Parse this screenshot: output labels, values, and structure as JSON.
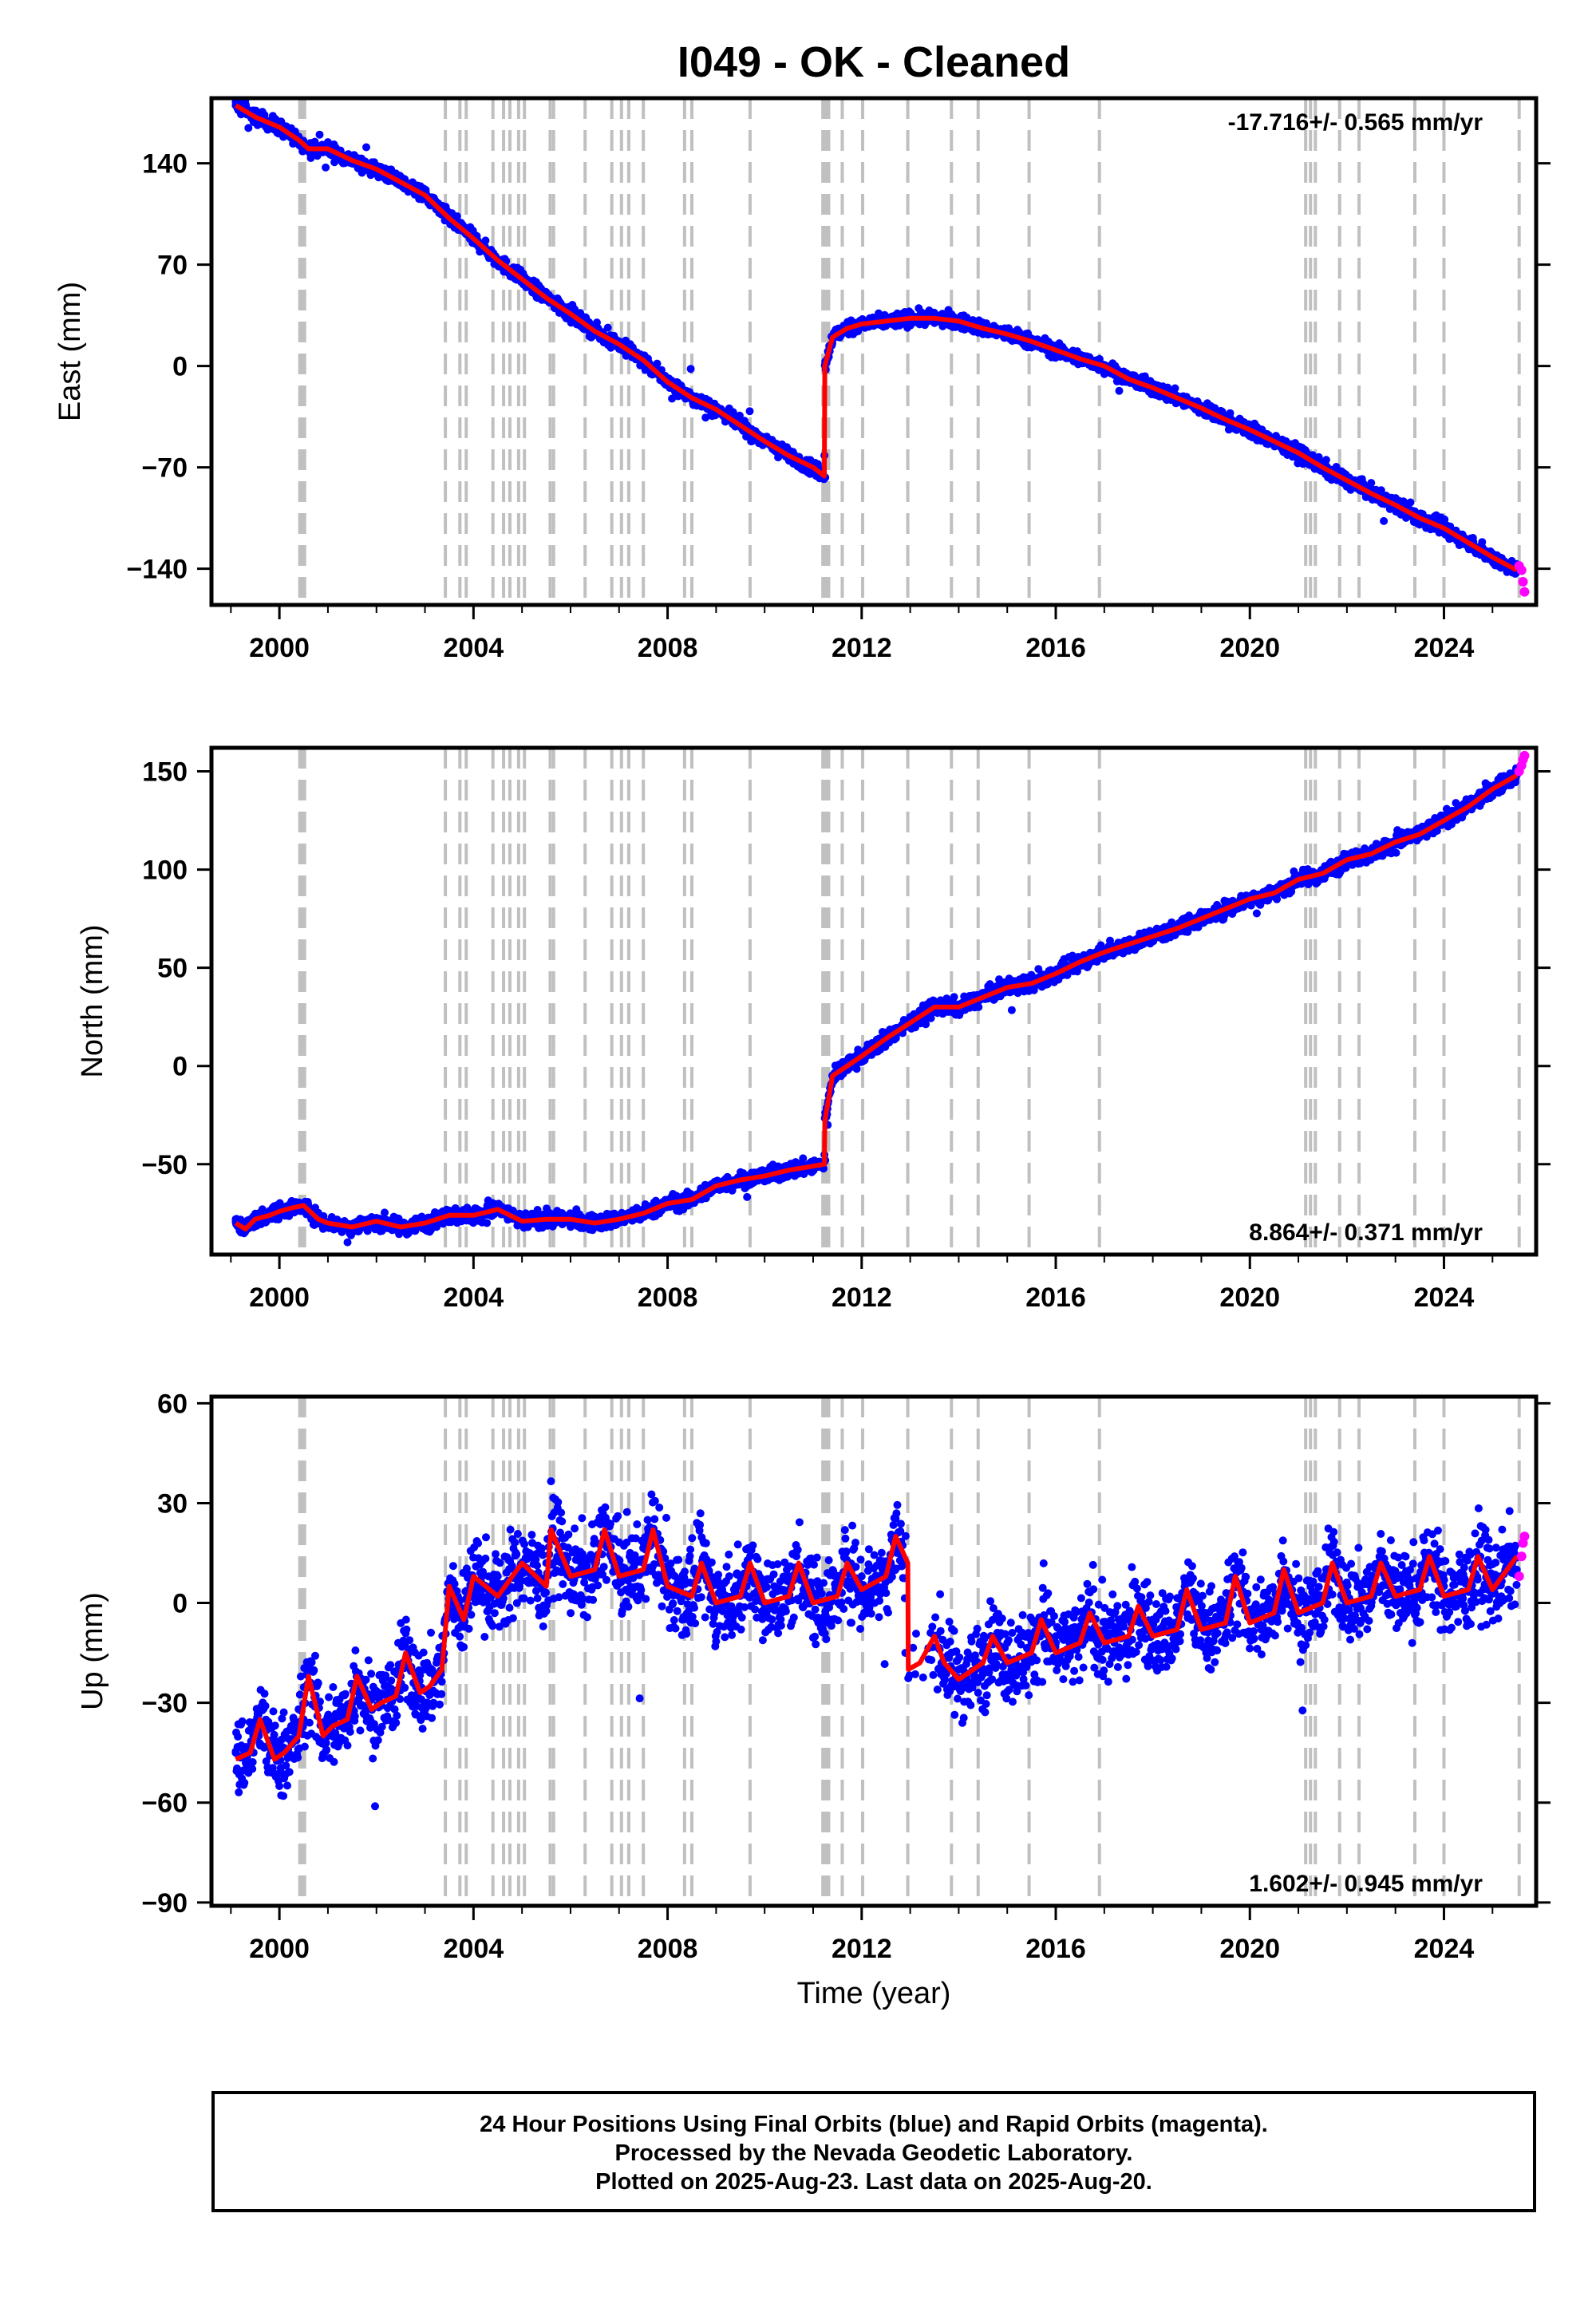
{
  "title": "I049  - OK - Cleaned",
  "xlabel": "Time (year)",
  "caption": [
    "24 Hour Positions Using Final Orbits (blue) and Rapid Orbits (magenta).",
    "Processed by the Nevada Geodetic Laboratory.",
    "Plotted on 2025-Aug-23. Last data on 2025-Aug-20."
  ],
  "colors": {
    "final_orbits": "#0000ff",
    "rapid_orbits": "#ff00ff",
    "model": "#ff0000",
    "event_lines": "#c0c0c0",
    "frame": "#000000"
  },
  "chart_data": [
    {
      "type": "scatter",
      "component": "East",
      "ylabel": "East (mm)",
      "rate_text": "-17.716+/- 0.565 mm/yr",
      "rate_position": "top-right",
      "xlim": [
        1998.6,
        2025.9
      ],
      "ylim": [
        -165,
        185
      ],
      "xticks": [
        "2000",
        "2004",
        "2008",
        "2012",
        "2016",
        "2020",
        "2024"
      ],
      "yticks": [
        "140",
        "70",
        "0",
        "−70",
        "−140"
      ],
      "ytick_values": [
        140,
        70,
        0,
        -70,
        -140
      ],
      "grid": false,
      "series": [
        {
          "name": "Final Orbits",
          "style": "points",
          "x": [
            1999.1,
            1999.5,
            2000.0,
            2000.5,
            2001.0,
            2001.5,
            2002.0,
            2002.5,
            2003.0,
            2003.5,
            2004.0,
            2004.5,
            2005.0,
            2005.5,
            2006.0,
            2006.5,
            2007.0,
            2007.5,
            2008.0,
            2008.5,
            2009.0,
            2009.5,
            2010.0,
            2010.5,
            2011.0,
            2011.25,
            2011.3,
            2011.5,
            2012.0,
            2012.5,
            2013.0,
            2013.5,
            2014.0,
            2014.5,
            2015.0,
            2015.5,
            2016.0,
            2016.5,
            2017.0,
            2017.5,
            2018.0,
            2018.5,
            2019.0,
            2019.5,
            2020.0,
            2020.5,
            2021.0,
            2021.5,
            2022.0,
            2022.5,
            2023.0,
            2023.5,
            2024.0,
            2024.5,
            2025.0,
            2025.5
          ],
          "y": [
            180,
            172,
            166,
            153,
            152,
            143,
            137,
            128,
            118,
            101,
            88,
            72,
            60,
            46,
            35,
            23,
            14,
            3,
            -12,
            -23,
            -30,
            -41,
            -52,
            -62,
            -70,
            -77,
            5,
            22,
            27,
            30,
            33,
            32,
            31,
            27,
            23,
            17,
            12,
            5,
            0,
            -9,
            -15,
            -22,
            -29,
            -37,
            -44,
            -52,
            -61,
            -71,
            -79,
            -88,
            -96,
            -105,
            -112,
            -122,
            -132,
            -142
          ]
        },
        {
          "name": "Rapid Orbits",
          "style": "points",
          "x": [
            2025.55,
            2025.6,
            2025.63,
            2025.66
          ],
          "y": [
            -138,
            -141,
            -149,
            -156
          ]
        },
        {
          "name": "Model",
          "style": "line",
          "x": [
            1999.1,
            1999.5,
            2000.0,
            2000.4,
            2000.6,
            2001.0,
            2001.5,
            2002.0,
            2002.5,
            2003.0,
            2003.5,
            2004.0,
            2004.5,
            2005.0,
            2005.5,
            2006.0,
            2006.5,
            2007.0,
            2007.5,
            2008.0,
            2008.5,
            2009.0,
            2009.5,
            2010.0,
            2010.5,
            2011.0,
            2011.23,
            2011.24,
            2011.4,
            2011.7,
            2012.0,
            2012.5,
            2013.0,
            2013.5,
            2014.0,
            2014.5,
            2015.0,
            2015.5,
            2016.0,
            2016.5,
            2017.0,
            2017.5,
            2018.0,
            2018.5,
            2019.0,
            2019.5,
            2020.0,
            2020.5,
            2021.0,
            2021.5,
            2022.0,
            2022.5,
            2023.0,
            2023.5,
            2024.0,
            2024.5,
            2025.0,
            2025.5
          ],
          "y": [
            180,
            172,
            165,
            156,
            150,
            150,
            142,
            136,
            127,
            118,
            102,
            88,
            73,
            60,
            47,
            36,
            24,
            15,
            4,
            -11,
            -22,
            -30,
            -41,
            -52,
            -62,
            -70,
            -76,
            0,
            20,
            26,
            29,
            31,
            33,
            33,
            31,
            26,
            22,
            17,
            11,
            5,
            0,
            -9,
            -15,
            -22,
            -29,
            -37,
            -44,
            -52,
            -60,
            -70,
            -79,
            -88,
            -96,
            -105,
            -112,
            -122,
            -132,
            -141
          ]
        }
      ]
    },
    {
      "type": "scatter",
      "component": "North",
      "ylabel": "North (mm)",
      "rate_text": "8.864+/- 0.371 mm/yr",
      "rate_position": "bottom-right",
      "xlim": [
        1998.6,
        2025.9
      ],
      "ylim": [
        -96,
        162
      ],
      "xticks": [
        "2000",
        "2004",
        "2008",
        "2012",
        "2016",
        "2020",
        "2024"
      ],
      "yticks": [
        "150",
        "100",
        "50",
        "0",
        "−50"
      ],
      "ytick_values": [
        150,
        100,
        50,
        0,
        -50
      ],
      "grid": false,
      "series": [
        {
          "name": "Final Orbits",
          "style": "points",
          "x": [
            1999.1,
            1999.5,
            2000.0,
            2000.5,
            2001.0,
            2001.5,
            2002.0,
            2002.5,
            2003.0,
            2003.5,
            2004.0,
            2004.5,
            2005.0,
            2005.5,
            2006.0,
            2006.5,
            2007.0,
            2007.5,
            2008.0,
            2008.5,
            2009.0,
            2009.5,
            2010.0,
            2010.5,
            2011.0,
            2011.25,
            2011.3,
            2011.5,
            2012.0,
            2012.5,
            2013.0,
            2013.5,
            2014.0,
            2014.5,
            2015.0,
            2015.5,
            2016.0,
            2016.5,
            2017.0,
            2017.5,
            2018.0,
            2018.5,
            2019.0,
            2019.5,
            2020.0,
            2020.5,
            2021.0,
            2021.5,
            2022.0,
            2022.5,
            2023.0,
            2023.5,
            2024.0,
            2024.5,
            2025.0,
            2025.5
          ],
          "y": [
            -78,
            -80,
            -72,
            -70,
            -80,
            -82,
            -78,
            -82,
            -80,
            -76,
            -75,
            -73,
            -80,
            -77,
            -78,
            -80,
            -77,
            -75,
            -71,
            -68,
            -62,
            -58,
            -56,
            -53,
            -51,
            -48,
            -30,
            -5,
            5,
            15,
            22,
            28,
            30,
            35,
            40,
            42,
            48,
            52,
            58,
            62,
            66,
            70,
            75,
            80,
            85,
            88,
            95,
            98,
            105,
            108,
            114,
            118,
            125,
            132,
            140,
            148
          ]
        },
        {
          "name": "Rapid Orbits",
          "style": "points",
          "x": [
            2025.55,
            2025.6,
            2025.63,
            2025.66
          ],
          "y": [
            150,
            153,
            156,
            158
          ]
        },
        {
          "name": "Model",
          "style": "line",
          "x": [
            1999.1,
            1999.3,
            1999.5,
            1999.8,
            2000.0,
            2000.3,
            2000.5,
            2000.8,
            2001.0,
            2001.5,
            2002.0,
            2002.5,
            2003.0,
            2003.5,
            2004.0,
            2004.5,
            2005.0,
            2005.5,
            2006.0,
            2006.5,
            2007.0,
            2007.5,
            2008.0,
            2008.5,
            2009.0,
            2009.5,
            2010.0,
            2010.5,
            2011.0,
            2011.23,
            2011.24,
            2011.4,
            2011.7,
            2012.0,
            2012.5,
            2013.0,
            2013.5,
            2014.0,
            2014.5,
            2015.0,
            2015.5,
            2016.0,
            2016.5,
            2017.0,
            2017.5,
            2018.0,
            2018.5,
            2019.0,
            2019.5,
            2020.0,
            2020.5,
            2021.0,
            2021.5,
            2022.0,
            2022.5,
            2023.0,
            2023.5,
            2024.0,
            2024.5,
            2025.0,
            2025.5
          ],
          "y": [
            -80,
            -83,
            -78,
            -76,
            -74,
            -72,
            -71,
            -78,
            -80,
            -82,
            -79,
            -82,
            -80,
            -76,
            -76,
            -73,
            -79,
            -78,
            -78,
            -80,
            -78,
            -75,
            -70,
            -68,
            -61,
            -58,
            -56,
            -53,
            -51,
            -50,
            -28,
            -5,
            0,
            5,
            14,
            22,
            30,
            30,
            35,
            40,
            42,
            47,
            53,
            58,
            62,
            66,
            70,
            75,
            80,
            85,
            88,
            95,
            98,
            105,
            108,
            114,
            118,
            125,
            132,
            141,
            148
          ]
        }
      ]
    },
    {
      "type": "scatter",
      "component": "Up",
      "ylabel": "Up (mm)",
      "rate_text": "1.602+/- 0.945 mm/yr",
      "rate_position": "bottom-right",
      "xlim": [
        1998.6,
        2025.9
      ],
      "ylim": [
        -91,
        62
      ],
      "xticks": [
        "2000",
        "2004",
        "2008",
        "2012",
        "2016",
        "2020",
        "2024"
      ],
      "yticks": [
        "60",
        "30",
        "0",
        "−30",
        "−60",
        "−90"
      ],
      "ytick_values": [
        60,
        30,
        0,
        -30,
        -60,
        -90
      ],
      "grid": false,
      "series": [
        {
          "name": "Final Orbits",
          "style": "points",
          "x": [
            1999.1,
            1999.5,
            2000.0,
            2000.5,
            2001.0,
            2001.5,
            2002.0,
            2002.5,
            2003.0,
            2003.5,
            2004.0,
            2004.5,
            2005.0,
            2005.5,
            2006.0,
            2006.5,
            2007.0,
            2007.5,
            2008.0,
            2008.5,
            2009.0,
            2009.5,
            2010.0,
            2010.5,
            2011.0,
            2011.5,
            2012.0,
            2012.5,
            2012.9,
            2013.5,
            2014.0,
            2014.5,
            2015.0,
            2015.5,
            2016.0,
            2016.5,
            2017.0,
            2017.5,
            2018.0,
            2018.5,
            2019.0,
            2019.5,
            2020.0,
            2020.5,
            2021.0,
            2021.5,
            2022.0,
            2022.5,
            2023.0,
            2023.5,
            2024.0,
            2024.5,
            2025.0,
            2025.5
          ],
          "y": [
            -45,
            -40,
            -45,
            -35,
            -40,
            -33,
            -28,
            -22,
            -20,
            0,
            5,
            8,
            10,
            12,
            10,
            12,
            10,
            12,
            8,
            6,
            6,
            8,
            6,
            8,
            6,
            8,
            8,
            12,
            -15,
            -10,
            -20,
            -15,
            -12,
            -12,
            -10,
            -8,
            -8,
            -5,
            -5,
            -3,
            -3,
            0,
            -2,
            0,
            0,
            2,
            2,
            4,
            3,
            5,
            5,
            6,
            6,
            10
          ]
        },
        {
          "name": "Rapid Orbits",
          "style": "points",
          "x": [
            2025.55,
            2025.6,
            2025.63,
            2025.66
          ],
          "y": [
            8,
            14,
            18,
            20
          ]
        },
        {
          "name": "Model",
          "style": "line",
          "x": [
            1999.1,
            1999.4,
            1999.6,
            1999.9,
            2000.1,
            2000.4,
            2000.6,
            2000.9,
            2001.1,
            2001.4,
            2001.6,
            2001.9,
            2002.1,
            2002.4,
            2002.6,
            2002.9,
            2003.1,
            2003.35,
            2003.5,
            2003.8,
            2004.0,
            2004.5,
            2005.0,
            2005.5,
            2005.6,
            2006.0,
            2006.5,
            2006.7,
            2007.0,
            2007.5,
            2007.7,
            2008.0,
            2008.5,
            2008.7,
            2009.0,
            2009.5,
            2009.7,
            2010.0,
            2010.5,
            2010.7,
            2011.0,
            2011.5,
            2011.7,
            2012.0,
            2012.5,
            2012.7,
            2012.95,
            2012.96,
            2013.2,
            2013.5,
            2013.7,
            2014.0,
            2014.5,
            2014.7,
            2015.0,
            2015.5,
            2015.7,
            2016.0,
            2016.5,
            2016.7,
            2017.0,
            2017.5,
            2017.7,
            2018.0,
            2018.5,
            2018.7,
            2019.0,
            2019.5,
            2019.7,
            2020.0,
            2020.5,
            2020.7,
            2021.0,
            2021.5,
            2021.7,
            2022.0,
            2022.5,
            2022.7,
            2023.0,
            2023.5,
            2023.7,
            2024.0,
            2024.5,
            2024.7,
            2025.0,
            2025.5
          ],
          "y": [
            -47,
            -45,
            -35,
            -47,
            -45,
            -40,
            -22,
            -40,
            -37,
            -35,
            -22,
            -32,
            -30,
            -28,
            -15,
            -27,
            -25,
            -20,
            5,
            -5,
            8,
            2,
            12,
            5,
            22,
            8,
            10,
            22,
            8,
            10,
            22,
            5,
            2,
            12,
            0,
            2,
            12,
            0,
            2,
            12,
            0,
            2,
            12,
            4,
            8,
            20,
            12,
            -20,
            -18,
            -10,
            -18,
            -23,
            -18,
            -10,
            -18,
            -15,
            -5,
            -15,
            -12,
            -3,
            -12,
            -10,
            -1,
            -10,
            -8,
            4,
            -8,
            -6,
            8,
            -6,
            -3,
            10,
            -3,
            0,
            12,
            0,
            2,
            12,
            2,
            4,
            14,
            2,
            4,
            14,
            4,
            14
          ]
        }
      ]
    }
  ],
  "event_lines_years": [
    2000.42,
    2000.47,
    2000.52,
    2003.42,
    2003.72,
    2003.85,
    2004.4,
    2004.62,
    2004.75,
    2004.93,
    2005.05,
    2005.58,
    2005.65,
    2006.3,
    2006.85,
    2007.05,
    2007.2,
    2007.5,
    2008.35,
    2008.5,
    2009.7,
    2011.2,
    2011.26,
    2011.32,
    2011.6,
    2012.02,
    2012.95,
    2013.85,
    2014.4,
    2015.45,
    2016.9,
    2021.15,
    2021.25,
    2021.35,
    2021.85,
    2022.25,
    2023.4,
    2024.0,
    2025.55
  ]
}
